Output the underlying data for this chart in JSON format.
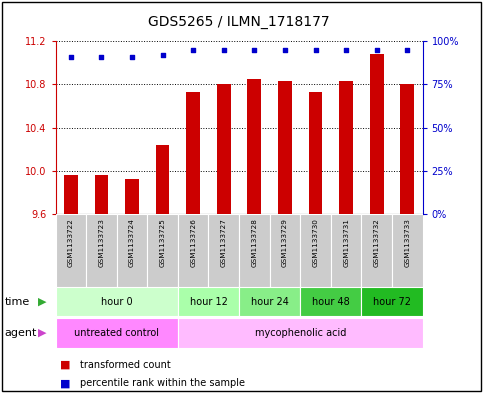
{
  "title": "GDS5265 / ILMN_1718177",
  "samples": [
    "GSM1133722",
    "GSM1133723",
    "GSM1133724",
    "GSM1133725",
    "GSM1133726",
    "GSM1133727",
    "GSM1133728",
    "GSM1133729",
    "GSM1133730",
    "GSM1133731",
    "GSM1133732",
    "GSM1133733"
  ],
  "transformed_counts": [
    9.96,
    9.96,
    9.93,
    10.24,
    10.73,
    10.8,
    10.85,
    10.83,
    10.73,
    10.83,
    11.08,
    10.8
  ],
  "percentile_ranks": [
    91,
    91,
    91,
    92,
    95,
    95,
    95,
    95,
    95,
    95,
    95,
    95
  ],
  "ylim_left": [
    9.6,
    11.2
  ],
  "ylim_right": [
    0,
    100
  ],
  "yticks_left": [
    9.6,
    10.0,
    10.4,
    10.8,
    11.2
  ],
  "yticks_right": [
    0,
    25,
    50,
    75,
    100
  ],
  "ytick_labels_right": [
    "0%",
    "25%",
    "50%",
    "75%",
    "100%"
  ],
  "bar_color": "#cc0000",
  "dot_color": "#0000cc",
  "bar_bottom": 9.6,
  "time_groups": [
    {
      "label": "hour 0",
      "start": 0,
      "end": 3,
      "color": "#ccffcc"
    },
    {
      "label": "hour 12",
      "start": 4,
      "end": 5,
      "color": "#aaffaa"
    },
    {
      "label": "hour 24",
      "start": 6,
      "end": 7,
      "color": "#88ee88"
    },
    {
      "label": "hour 48",
      "start": 8,
      "end": 9,
      "color": "#44cc44"
    },
    {
      "label": "hour 72",
      "start": 10,
      "end": 11,
      "color": "#22bb22"
    }
  ],
  "agent_groups": [
    {
      "label": "untreated control",
      "start": 0,
      "end": 3,
      "color": "#ff88ff"
    },
    {
      "label": "mycophenolic acid",
      "start": 4,
      "end": 11,
      "color": "#ffbbff"
    }
  ],
  "legend_bar_label": "transformed count",
  "legend_dot_label": "percentile rank within the sample",
  "sample_bg_color": "#cccccc",
  "axis_color_left": "#cc0000",
  "axis_color_right": "#0000cc",
  "title_fontsize": 10,
  "tick_fontsize": 7,
  "label_fontsize": 8
}
